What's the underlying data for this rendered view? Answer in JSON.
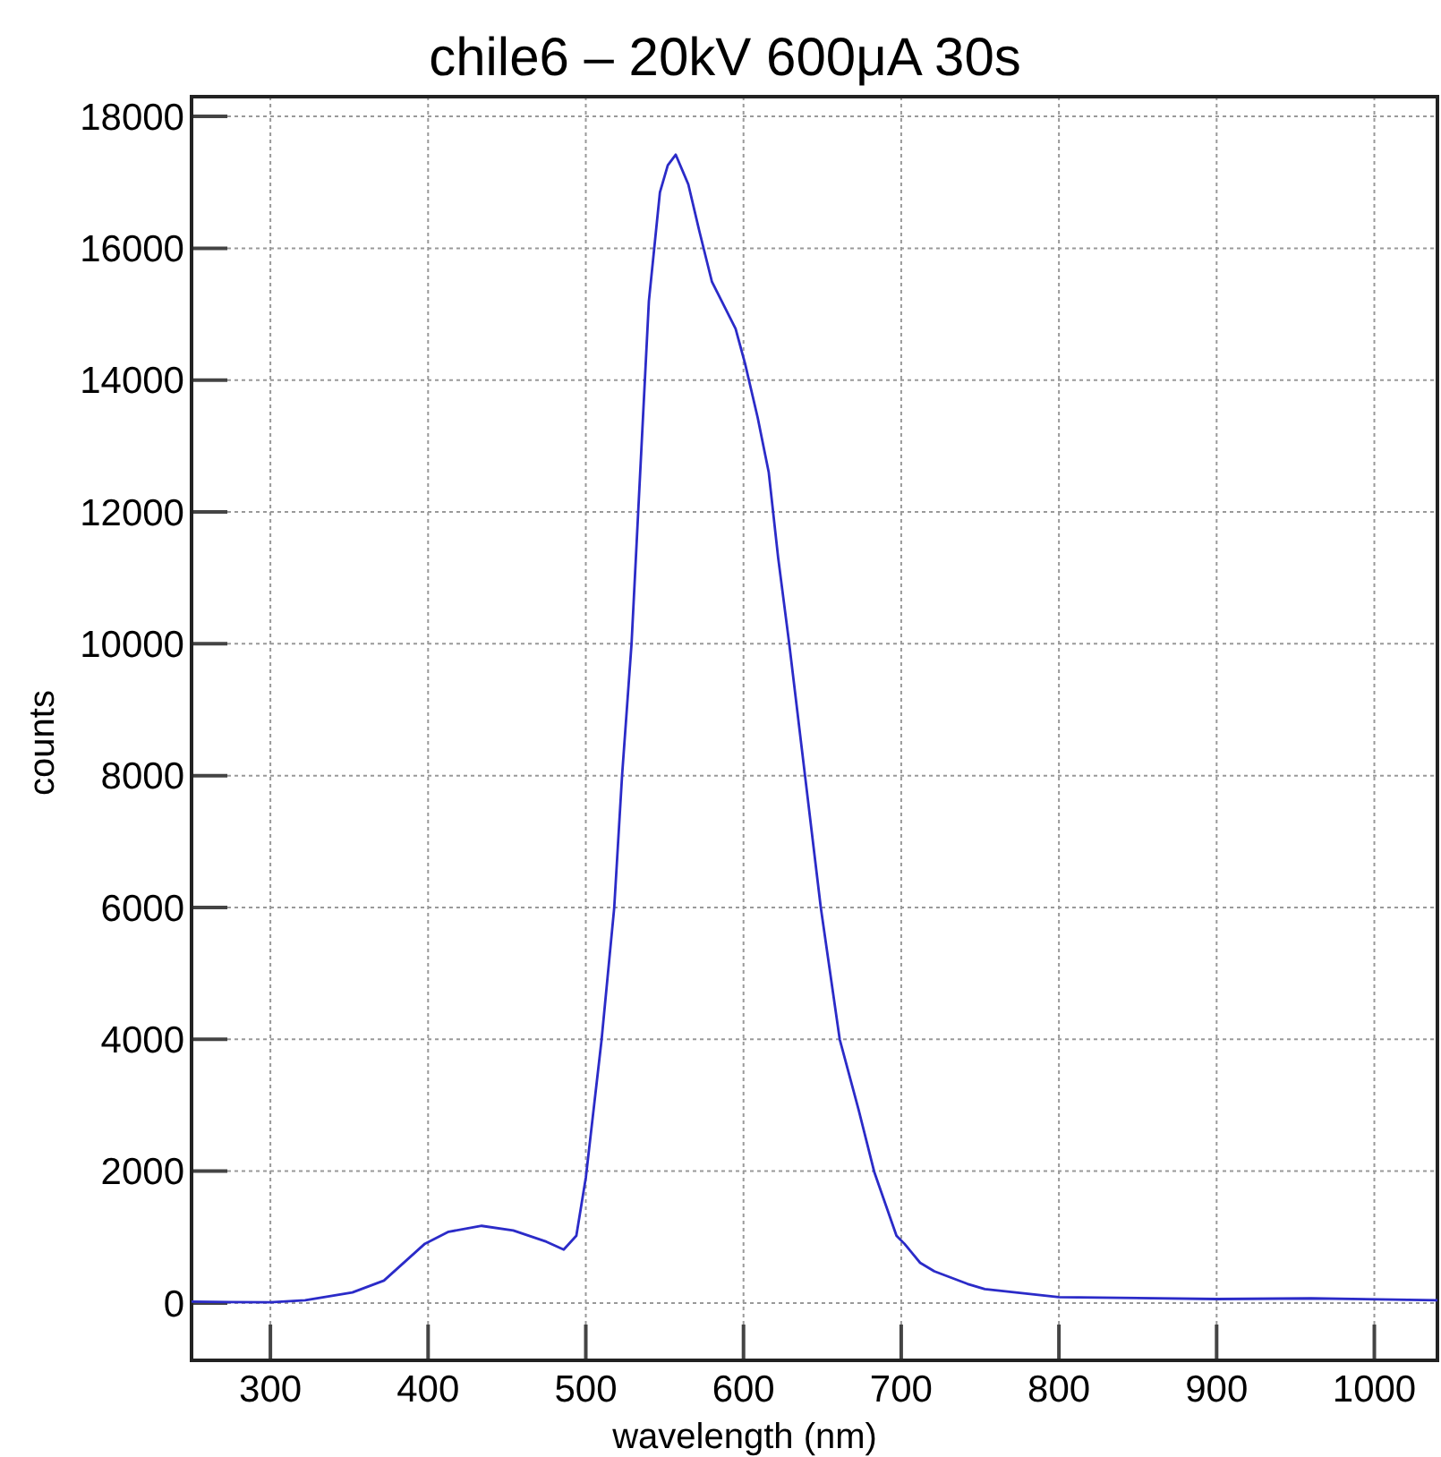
{
  "chart_data": {
    "type": "line",
    "title": "chile6 – 20kV 600μA 30s",
    "xlabel": "wavelength  (nm)",
    "ylabel": "counts",
    "xlim": [
      250,
      1040
    ],
    "ylim": [
      -870,
      18300
    ],
    "xticks": [
      300,
      400,
      500,
      600,
      700,
      800,
      900,
      1000
    ],
    "yticks": [
      0,
      2000,
      4000,
      6000,
      8000,
      10000,
      12000,
      14000,
      16000,
      18000
    ],
    "grid": true,
    "marker": "none",
    "line_style": "solid",
    "series": [
      {
        "color": "#2b2bc8",
        "x": [
          250,
          300,
          322,
          352,
          372,
          398,
          413,
          434,
          454,
          475,
          486,
          494,
          500,
          510,
          518,
          523,
          529,
          535,
          540,
          547,
          552,
          557,
          565,
          572,
          580,
          595,
          601,
          609,
          616,
          622,
          629,
          639,
          649,
          661,
          673,
          683,
          697,
          702,
          712,
          721,
          742,
          753,
          800,
          900,
          960,
          1040
        ],
        "values": [
          20,
          10,
          40,
          160,
          340,
          900,
          1080,
          1170,
          1100,
          930,
          810,
          1020,
          1900,
          3990,
          5990,
          8000,
          10000,
          12840,
          15200,
          16850,
          17260,
          17420,
          16970,
          16260,
          15490,
          14780,
          14250,
          13430,
          12600,
          11300,
          10000,
          8000,
          6000,
          4000,
          2930,
          1980,
          1020,
          900,
          610,
          480,
          290,
          210,
          90,
          60,
          70,
          40
        ]
      }
    ]
  }
}
